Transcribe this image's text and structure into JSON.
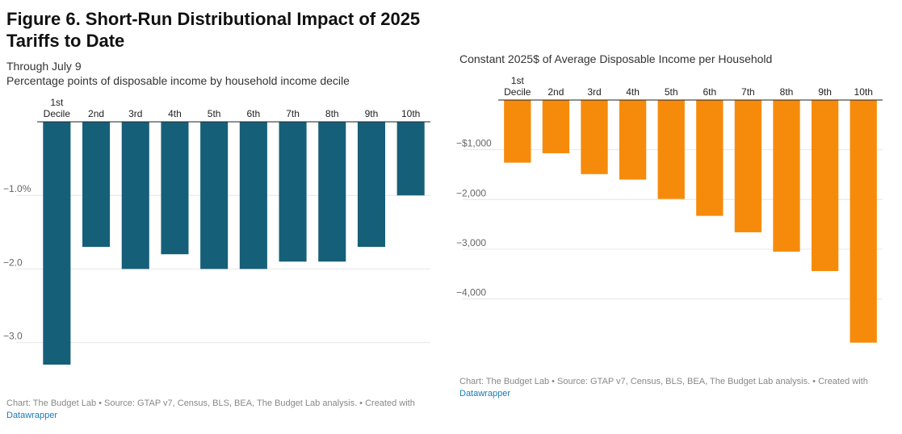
{
  "title": "Figure 6. Short-Run Distributional Impact of 2025 Tariffs to Date",
  "left": {
    "subtitle1": "Through July 9",
    "subtitle2": "Percentage points of disposable income by household income decile",
    "source_prefix": "Chart: The Budget Lab • Source: GTAP v7, Census, BLS, BEA, The Budget Lab analysis. • Created with",
    "source_link": "Datawrapper"
  },
  "right": {
    "subtitle": "Constant 2025$ of Average Disposable Income per Household",
    "source_prefix": "Chart: The Budget Lab • Source: GTAP v7, Census, BLS, BEA, The Budget Lab analysis. • Created with",
    "source_link": "Datawrapper"
  },
  "chart_data": [
    {
      "type": "bar",
      "title": "Percentage points of disposable income by household income decile",
      "categories": [
        [
          "1st",
          "Decile"
        ],
        [
          "2nd"
        ],
        [
          "3rd"
        ],
        [
          "4th"
        ],
        [
          "5th"
        ],
        [
          "6th"
        ],
        [
          "7th"
        ],
        [
          "8th"
        ],
        [
          "9th"
        ],
        [
          "10th"
        ]
      ],
      "values": [
        -3.3,
        -1.7,
        -2.0,
        -1.8,
        -2.0,
        -2.0,
        -1.9,
        -1.9,
        -1.7,
        -1.0
      ],
      "ylim": [
        -3.3,
        0
      ],
      "yticks": [
        -1.0,
        -2.0,
        -3.0
      ],
      "ytick_labels": [
        "−1.0%",
        "−2.0",
        "−3.0"
      ],
      "color": "#165f79",
      "xlabel": "",
      "ylabel": ""
    },
    {
      "type": "bar",
      "title": "Constant 2025$ of Average Disposable Income per Household",
      "categories": [
        [
          "1st",
          "Decile"
        ],
        [
          "2nd"
        ],
        [
          "3rd"
        ],
        [
          "4th"
        ],
        [
          "5th"
        ],
        [
          "6th"
        ],
        [
          "7th"
        ],
        [
          "8th"
        ],
        [
          "9th"
        ],
        [
          "10th"
        ]
      ],
      "values": [
        -1260,
        -1070,
        -1490,
        -1600,
        -1990,
        -2330,
        -2660,
        -3050,
        -3440,
        -4880
      ],
      "ylim": [
        -4900,
        0
      ],
      "yticks": [
        -1000,
        -2000,
        -3000,
        -4000
      ],
      "ytick_labels": [
        "−$1,000",
        "−2,000",
        "−3,000",
        "−4,000"
      ],
      "color": "#f68b0b",
      "xlabel": "",
      "ylabel": ""
    }
  ]
}
